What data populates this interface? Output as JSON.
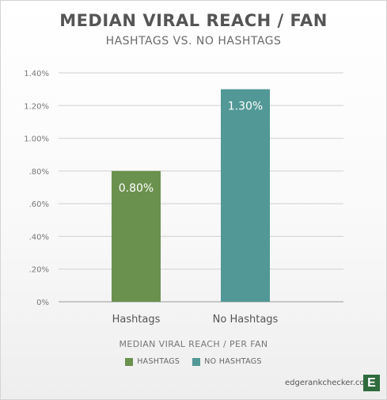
{
  "chart_data": {
    "type": "bar",
    "title": "MEDIAN VIRAL REACH / FAN",
    "subtitle": "HASHTAGS VS. NO HASHTAGS",
    "categories": [
      "Hashtags",
      "No Hashtags"
    ],
    "values": [
      0.8,
      1.3
    ],
    "value_labels": [
      "0.80%",
      "1.30%"
    ],
    "colors": [
      "#6b914e",
      "#519896"
    ],
    "xlabel": "MEDIAN VIRAL REACH / PER FAN",
    "ylabel": "",
    "ylim": [
      0,
      1.4
    ],
    "y_ticks": [
      0,
      0.2,
      0.4,
      0.6,
      0.8,
      1.0,
      1.2,
      1.4
    ],
    "y_tick_labels": [
      "0%",
      ".20%",
      ".40%",
      ".60%",
      ".80%",
      "1.00%",
      "1.20%",
      "1.40%"
    ],
    "grid": true,
    "legend": {
      "placement": "bottom",
      "entries": [
        {
          "label": "HASHTAGS",
          "color": "#6b914e"
        },
        {
          "label": "NO HASHTAGS",
          "color": "#519896"
        }
      ]
    }
  },
  "brand": {
    "text": "edgerankchecker.com",
    "logo_letter": "E",
    "logo_color": "#2f6b3d"
  }
}
